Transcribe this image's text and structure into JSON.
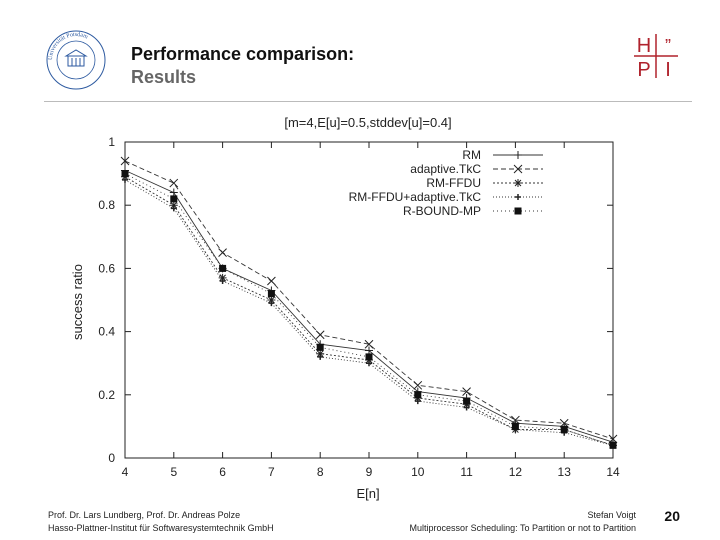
{
  "header": {
    "title": "Performance comparison:",
    "subtitle": "Results",
    "seal_text": "Universität Potsdam",
    "logo_letters": [
      "H",
      "”",
      "P",
      "I"
    ]
  },
  "footer": {
    "authors": "Prof. Dr. Lars Lundberg, Prof. Dr. Andreas Polze",
    "institute": "Hasso-Plattner-Institut für Softwaresystemtechnik GmbH",
    "presenter": "Stefan Voigt",
    "talk_title": "Multiprocessor Scheduling: To Partition or not to Partition",
    "page_number": "20"
  },
  "colors": {
    "hpi_red": "#b0222c",
    "series": "#222222"
  },
  "chart_data": {
    "type": "line",
    "title": "[m=4,E[u]=0.5,stddev[u]=0.4]",
    "xlabel": "E[n]",
    "ylabel": "success ratio",
    "xlim": [
      4,
      14
    ],
    "ylim": [
      0,
      1
    ],
    "x": [
      4,
      5,
      6,
      7,
      8,
      9,
      10,
      11,
      12,
      13,
      14
    ],
    "x_ticks": [
      "4",
      "5",
      "6",
      "7",
      "8",
      "9",
      "10",
      "11",
      "12",
      "13",
      "14"
    ],
    "y_ticks": [
      "0",
      "0.2",
      "0.4",
      "0.6",
      "0.8",
      "1"
    ],
    "y_tick_values": [
      0,
      0.2,
      0.4,
      0.6,
      0.8,
      1
    ],
    "legend_position": "top-right",
    "series": [
      {
        "name": "RM",
        "marker": "plus",
        "dash": "none",
        "values": [
          0.91,
          0.84,
          0.6,
          0.53,
          0.36,
          0.34,
          0.21,
          0.19,
          0.11,
          0.1,
          0.05
        ]
      },
      {
        "name": "adaptive.TkC",
        "marker": "cross",
        "dash": "5,3",
        "values": [
          0.94,
          0.87,
          0.65,
          0.56,
          0.39,
          0.36,
          0.23,
          0.21,
          0.12,
          0.11,
          0.06
        ]
      },
      {
        "name": "RM-FFDU",
        "marker": "star",
        "dash": "2,2",
        "values": [
          0.89,
          0.8,
          0.57,
          0.5,
          0.33,
          0.31,
          0.19,
          0.17,
          0.09,
          0.09,
          0.04
        ]
      },
      {
        "name": "RM-FFDU+adaptive.TkC",
        "marker": "plus-small",
        "dash": "1,2",
        "values": [
          0.88,
          0.79,
          0.56,
          0.49,
          0.32,
          0.3,
          0.18,
          0.16,
          0.09,
          0.08,
          0.04
        ]
      },
      {
        "name": "R-BOUND-MP",
        "marker": "square",
        "dash": "1,3",
        "values": [
          0.9,
          0.82,
          0.6,
          0.52,
          0.35,
          0.32,
          0.2,
          0.18,
          0.1,
          0.09,
          0.04
        ]
      }
    ]
  }
}
